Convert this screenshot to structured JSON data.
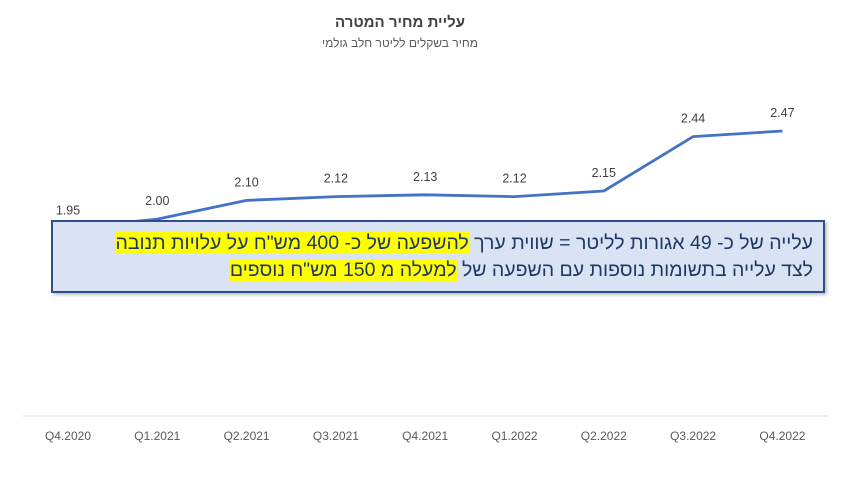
{
  "chart_data": {
    "type": "line",
    "title": "עליית מחיר המטרה",
    "subtitle": "מחיר בשקלים לליטר חלב גולמי",
    "categories": [
      "Q4.2020",
      "Q1.2021",
      "Q2.2021",
      "Q3.2021",
      "Q4.2021",
      "Q1.2022",
      "Q2.2022",
      "Q3.2022",
      "Q4.2022"
    ],
    "series": [
      {
        "values": [
          1.95,
          2.0,
          2.1,
          2.12,
          2.13,
          2.12,
          2.15,
          2.44,
          2.47
        ]
      }
    ],
    "data_labels": [
      "1.95",
      "2.00",
      "2.10",
      "2.12",
      "2.13",
      "2.12",
      "2.15",
      "2.44",
      "2.47"
    ],
    "ylim": [
      0.95,
      2.6
    ],
    "grid": false,
    "legend": "none",
    "line_color": "#4472c4"
  },
  "callout": {
    "line1_plain": "עלייה של כ- 49 אגורות לליטר = שווית ערך ",
    "line1_highlight": "להשפעה של כ- 400 מש\"ח על עלויות תנובה",
    "line2_plain": "לצד עלייה בתשומות נוספות עם השפעה של ",
    "line2_highlight": "למעלה מ 150 מש\"ח נוספים",
    "highlight_color": "#ffff00"
  }
}
